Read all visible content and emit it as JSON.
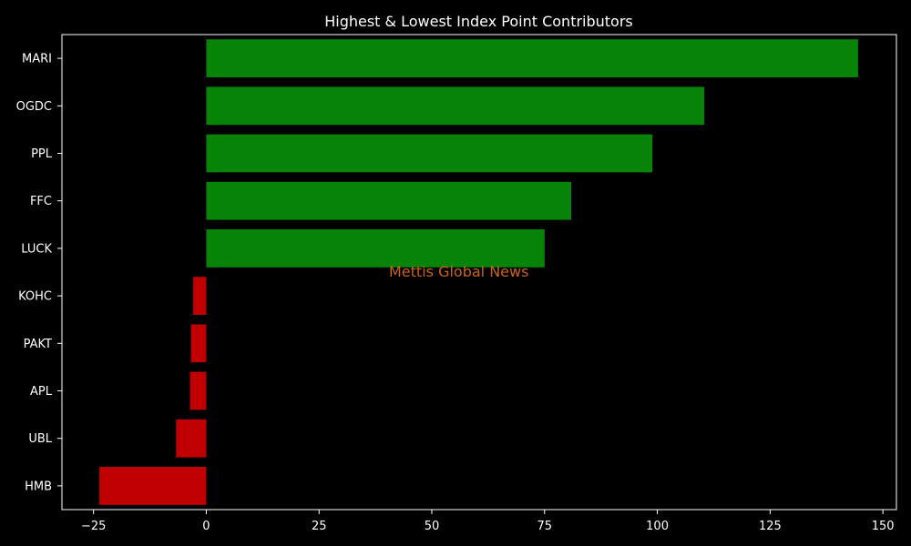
{
  "chart_data": {
    "type": "bar",
    "orientation": "horizontal",
    "title": "Highest & Lowest Index Point Contributors",
    "xlabel": "",
    "ylabel": "",
    "categories": [
      "MARI",
      "OGDC",
      "PPL",
      "FFC",
      "LUCK",
      "KOHC",
      "PAKT",
      "APL",
      "UBL",
      "HMB"
    ],
    "values": [
      144.5,
      110.4,
      98.9,
      80.9,
      75.0,
      -2.9,
      -3.4,
      -3.6,
      -6.7,
      -23.7
    ],
    "xlim": [
      -32,
      153
    ],
    "xticks": [
      -25,
      0,
      25,
      50,
      75,
      100,
      125,
      150
    ],
    "xtick_labels": [
      "−25",
      "0",
      "25",
      "50",
      "75",
      "100",
      "125",
      "150"
    ],
    "grid": false,
    "colors": {
      "positive": "#078307",
      "negative": "#c00000",
      "background": "#000000",
      "text": "#ffffff",
      "axis": "#ffffff"
    },
    "annotations": [
      {
        "text": "Mettis Global News",
        "x": 56,
        "y": "between LUCK and KOHC",
        "color": "#c86414"
      }
    ]
  }
}
